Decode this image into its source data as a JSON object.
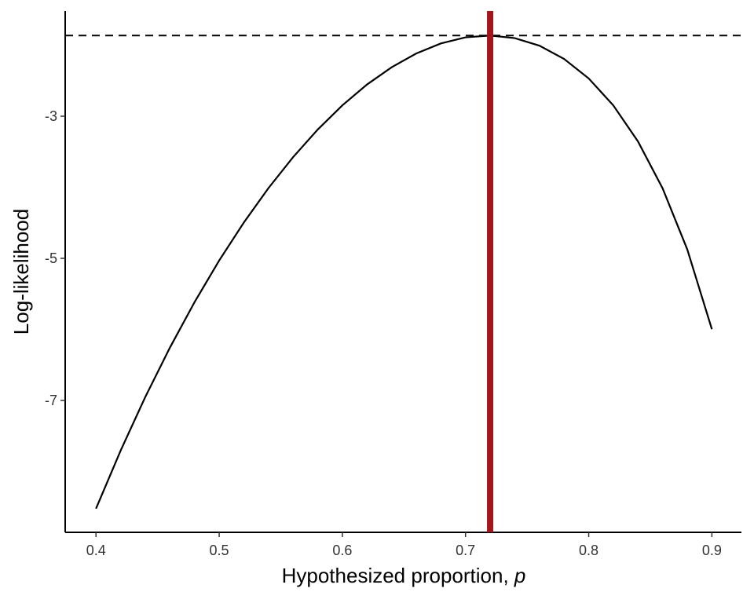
{
  "chart_data": {
    "type": "line",
    "xlabel": "Hypothesized proportion,",
    "xlabel_symbol": "p",
    "ylabel": "Log-likelihood",
    "x": [
      0.4,
      0.42,
      0.44,
      0.46,
      0.48,
      0.5,
      0.52,
      0.54,
      0.56,
      0.58,
      0.6,
      0.62,
      0.64,
      0.66,
      0.68,
      0.7,
      0.72,
      0.74,
      0.76,
      0.78,
      0.8,
      0.82,
      0.84,
      0.86,
      0.88,
      0.9
    ],
    "series": [
      {
        "color": "#000000",
        "values": [
          -8.523,
          -7.706,
          -6.952,
          -6.257,
          -5.617,
          -5.031,
          -4.497,
          -4.012,
          -3.576,
          -3.188,
          -2.847,
          -2.554,
          -2.311,
          -2.117,
          -1.976,
          -1.89,
          -1.864,
          -1.901,
          -2.007,
          -2.193,
          -2.468,
          -2.848,
          -3.354,
          -4.015,
          -4.873,
          -5.997
        ]
      }
    ],
    "vline": {
      "value": 0.72,
      "color": "#a3141c"
    },
    "hline": {
      "value": -1.864,
      "color": "#000000"
    },
    "xlim": [
      0.375,
      0.924
    ],
    "ylim": [
      -8.856,
      -1.519
    ],
    "xticks": [
      0.4,
      0.5,
      0.6,
      0.7,
      0.8,
      0.9
    ],
    "yticks": [
      -3,
      -5,
      -7
    ]
  }
}
